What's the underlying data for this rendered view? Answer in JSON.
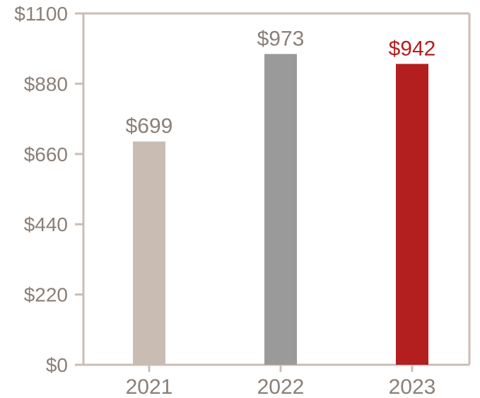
{
  "chart_data": {
    "type": "bar",
    "title": "",
    "xlabel": "",
    "ylabel": "",
    "categories": [
      "2021",
      "2022",
      "2023"
    ],
    "values": [
      699,
      973,
      942
    ],
    "value_labels": [
      "$699",
      "$973",
      "$942"
    ],
    "bar_colors": [
      "#c9bcb3",
      "#9a9a9a",
      "#b31e1e"
    ],
    "label_colors": [
      "#8a7f78",
      "#8a7f78",
      "#b31e1e"
    ],
    "ylim": [
      0,
      1100
    ],
    "y_ticks": [
      0,
      220,
      440,
      660,
      880,
      1100
    ],
    "y_tick_labels": [
      "$0",
      "$220",
      "$440",
      "$660",
      "$880",
      "$1100"
    ],
    "grid": false,
    "frame_color": "#cbbdb6"
  }
}
